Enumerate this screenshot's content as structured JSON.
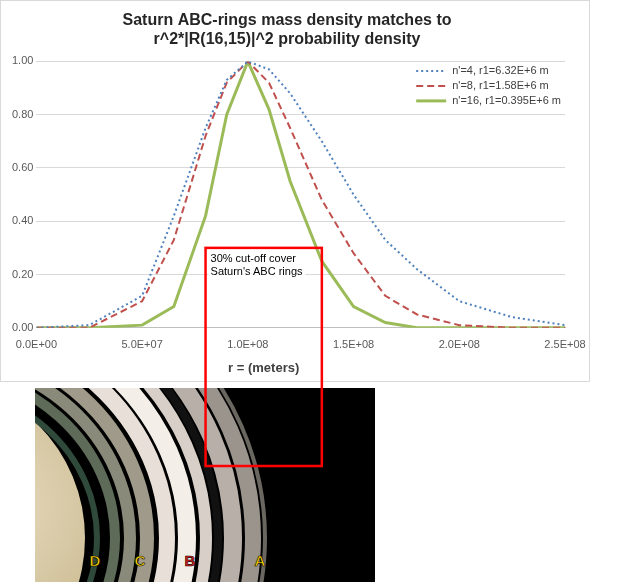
{
  "chart_data": {
    "type": "line",
    "title": "Saturn ABC-rings mass density matches to r^2*|R(16,15)|^2 probability density",
    "x_label": "r = (meters)",
    "x": [
      0,
      25000000,
      50000000,
      65000000,
      80000000,
      90000000,
      100000000,
      110000000,
      120000000,
      135000000,
      150000000,
      165000000,
      180000000,
      200000000,
      225000000,
      250000000
    ],
    "series": [
      {
        "name": "n'=4, r1=6.32E+6 m",
        "color": "#4f81bd",
        "line_style": "dotted",
        "values": [
          0,
          0.01,
          0.12,
          0.42,
          0.75,
          0.93,
          1.0,
          0.97,
          0.88,
          0.7,
          0.5,
          0.33,
          0.22,
          0.1,
          0.04,
          0.01
        ]
      },
      {
        "name": "n'=8, r1=1.58E+6 m",
        "color": "#c0504d",
        "line_style": "dashed",
        "values": [
          0,
          0,
          0.1,
          0.33,
          0.72,
          0.92,
          1.0,
          0.92,
          0.75,
          0.48,
          0.28,
          0.12,
          0.05,
          0.01,
          0,
          0
        ]
      },
      {
        "name": "n'=16, r1=0.395E+6 m",
        "color": "#9bbb59",
        "line_style": "solid",
        "values": [
          0,
          0,
          0.01,
          0.08,
          0.42,
          0.8,
          1.0,
          0.82,
          0.55,
          0.25,
          0.08,
          0.02,
          0,
          0,
          0,
          0
        ]
      }
    ],
    "xlim": [
      0,
      250000000
    ],
    "xticks": [
      {
        "value": 0,
        "label": "0.0E+00"
      },
      {
        "value": 50000000,
        "label": "5.0E+07"
      },
      {
        "value": 100000000,
        "label": "1.0E+08"
      },
      {
        "value": 150000000,
        "label": "1.5E+08"
      },
      {
        "value": 200000000,
        "label": "2.0E+08"
      },
      {
        "value": 250000000,
        "label": "2.5E+08"
      }
    ],
    "ylim": [
      0,
      1
    ],
    "yticks": [
      {
        "value": 0,
        "label": "0.00"
      },
      {
        "value": 0.2,
        "label": "0.20"
      },
      {
        "value": 0.4,
        "label": "0.40"
      },
      {
        "value": 0.6,
        "label": "0.60"
      },
      {
        "value": 0.8,
        "label": "0.80"
      },
      {
        "value": 1,
        "label": "1.00"
      }
    ],
    "grid": true,
    "legend": "top-right",
    "annotation": {
      "text": "30% cut-off cover Saturn's ABC rings",
      "x_range": [
        80000000,
        135000000
      ],
      "y_top": 0.3,
      "color": "#ff0000"
    }
  },
  "image": {
    "ring_labels": [
      {
        "text": "D",
        "color": "#ffd700"
      },
      {
        "text": "C",
        "color": "#ffd700"
      },
      {
        "text": "B",
        "color": "#e02020"
      },
      {
        "text": "A",
        "color": "#ffd700"
      }
    ]
  }
}
